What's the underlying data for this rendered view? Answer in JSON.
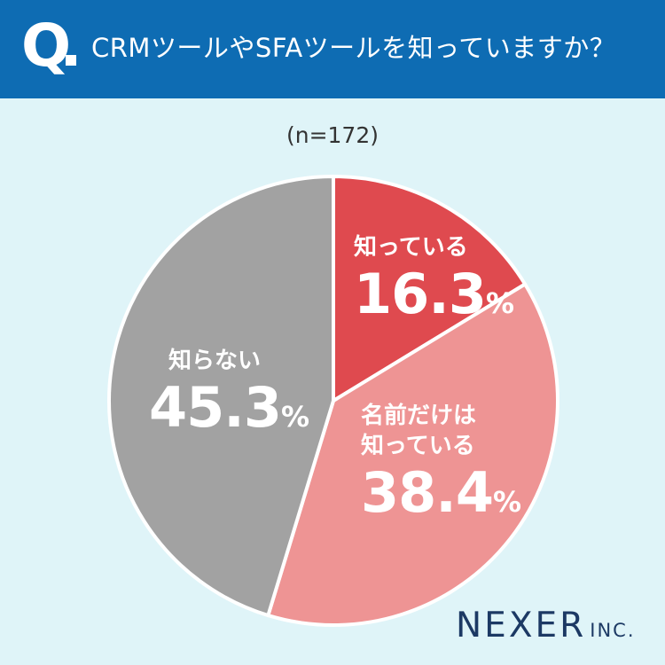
{
  "header": {
    "q_mark": "Q",
    "question": "CRMツールやSFAツールを知っていますか？"
  },
  "sample_size": "(n=172)",
  "labels": {
    "know": {
      "name": "知っている",
      "value": "16.3",
      "unit": "%"
    },
    "name_only": {
      "line1": "名前だけは",
      "line2": "知っている",
      "value": "38.4",
      "unit": "%"
    },
    "dont_know": {
      "name": "知らない",
      "value": "45.3",
      "unit": "%"
    }
  },
  "logo": {
    "main": "NEXER",
    "sub": "INC."
  },
  "chart_data": {
    "type": "pie",
    "title": "CRMツールやSFAツールを知っていますか？",
    "subtitle": "(n=172)",
    "categories": [
      "知っている",
      "名前だけは知っている",
      "知らない"
    ],
    "values": [
      16.3,
      38.4,
      45.3
    ],
    "unit": "%",
    "colors": [
      "#df4a4f",
      "#ee9494",
      "#a2a2a2"
    ],
    "start_angle": "12 o'clock",
    "direction": "clockwise",
    "legend": "none (labels on slices)"
  }
}
